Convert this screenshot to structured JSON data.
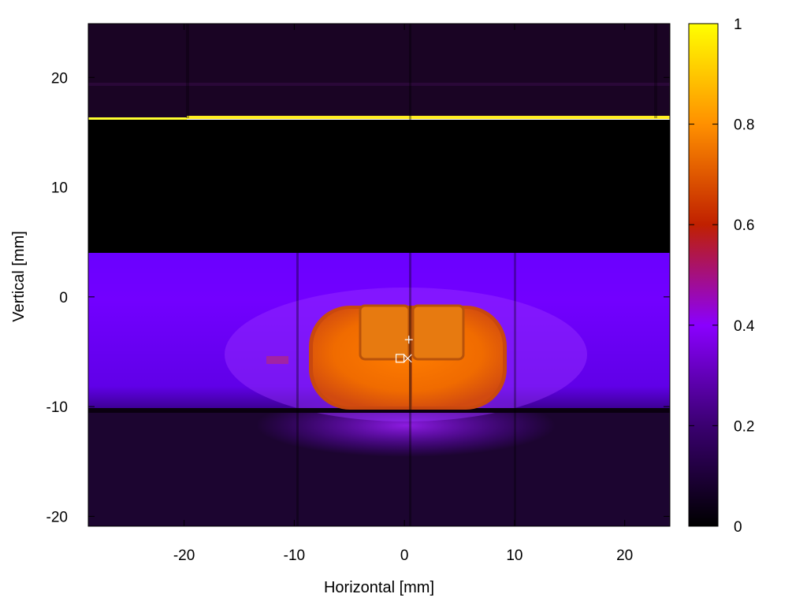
{
  "chart_data": {
    "type": "heatmap",
    "title": "",
    "xlabel": "Horizontal [mm]",
    "ylabel": "Vertical [mm]",
    "xlim": [
      -28.7,
      24.1
    ],
    "ylim": [
      -20.9,
      24.9
    ],
    "xticks": [
      -20,
      -10,
      0,
      10,
      20
    ],
    "yticks": [
      20,
      10,
      0,
      -10,
      -20
    ],
    "grid": false,
    "colorbar": {
      "palette": [
        "#000000",
        "#3a0070",
        "#8a00ff",
        "#c02000",
        "#ff9000",
        "#ffff00"
      ],
      "range": [
        0,
        1
      ],
      "ticks": [
        0,
        0.2,
        0.4,
        0.6,
        0.8,
        1
      ],
      "tick_labels": [
        "0",
        "0.2",
        "0.4",
        "0.6",
        "0.8",
        "1"
      ]
    },
    "regions": [
      {
        "name": "top band",
        "x": [
          -28.7,
          24.1
        ],
        "y": [
          16.6,
          24.9
        ],
        "level": 0.04
      },
      {
        "name": "bright edge line",
        "x": [
          -28.7,
          24.1
        ],
        "y": [
          16.2,
          16.6
        ],
        "level": 1.0
      },
      {
        "name": "dark gap",
        "x": [
          -28.7,
          24.1
        ],
        "y": [
          4.2,
          16.2
        ],
        "level": 0.0
      },
      {
        "name": "central band",
        "x": [
          -28.7,
          24.1
        ],
        "y": [
          -10.0,
          4.2
        ],
        "level": 0.3
      },
      {
        "name": "bottom band",
        "x": [
          -28.7,
          24.1
        ],
        "y": [
          -20.9,
          -10.0
        ],
        "level": 0.06
      },
      {
        "name": "beam spot",
        "center": [
          0.6,
          -5.0
        ],
        "half_width": [
          9.0,
          4.3
        ],
        "level": 0.72
      }
    ],
    "markers": [
      {
        "symbol": "+",
        "x": 0.4,
        "y": -3.9
      },
      {
        "symbol": "□",
        "x": -0.4,
        "y": -5.6
      },
      {
        "symbol": "×",
        "x": 0.3,
        "y": -5.6
      }
    ]
  }
}
